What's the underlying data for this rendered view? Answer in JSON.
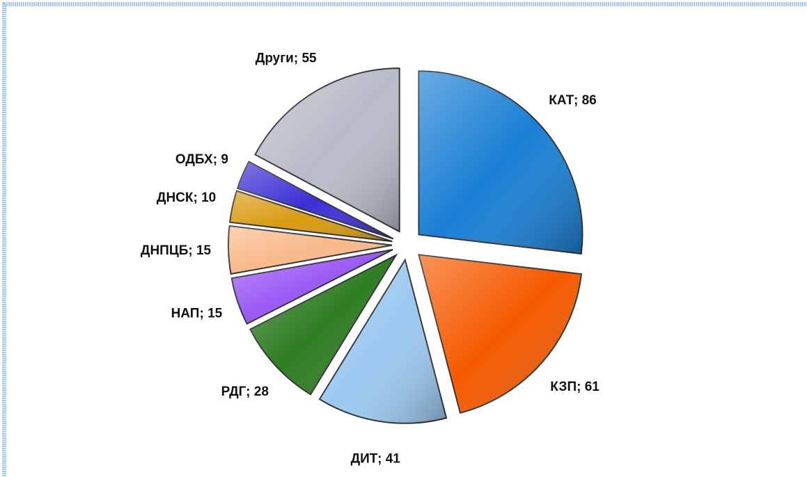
{
  "chart_data": {
    "type": "pie",
    "categories": [
      "КАТ",
      "КЗП",
      "ДИТ",
      "РДГ",
      "НАП",
      "ДНПЦБ",
      "ДНСК",
      "ОДБХ",
      "Други"
    ],
    "values": [
      86,
      61,
      41,
      28,
      15,
      15,
      10,
      9,
      55
    ],
    "colors": [
      "#1a7fd4",
      "#f55a00",
      "#9cc8f0",
      "#2e7d22",
      "#9b59f5",
      "#f9b98a",
      "#d99a10",
      "#3b2fd6",
      "#b8bcc8"
    ],
    "label_separator": "; "
  }
}
